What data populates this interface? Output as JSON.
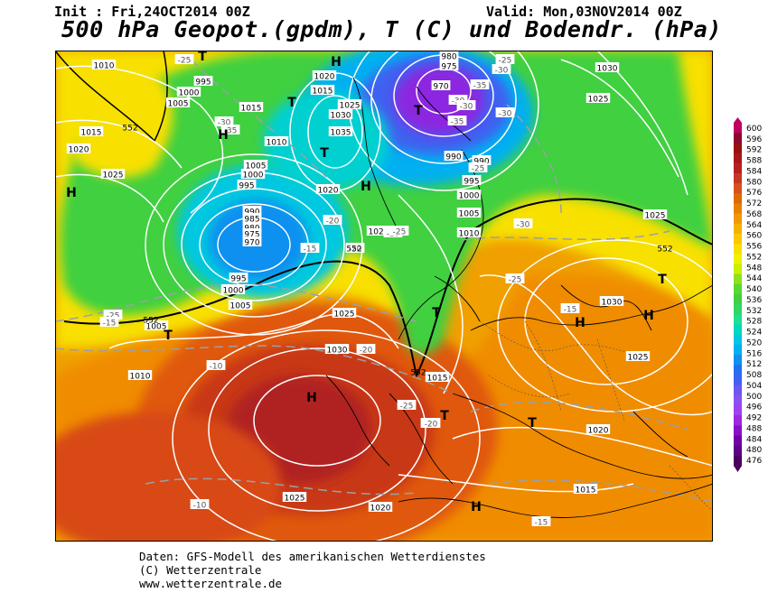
{
  "header": {
    "init_text": "Init : Fri,24OCT2014 00Z",
    "valid_text": "Valid: Mon,03NOV2014 00Z",
    "title": "500 hPa Geopot.(gpdm), T (C) und Bodendr. (hPa)"
  },
  "footer": {
    "line1": "Daten: GFS-Modell des amerikanischen Wetterdienstes",
    "line2": "(C) Wetterzentrale",
    "line3": "www.wetterzentrale.de"
  },
  "colors": {
    "colorbar": [
      "#4b0060",
      "#5e0088",
      "#7200a8",
      "#8a10c8",
      "#9c28e0",
      "#a040f0",
      "#8c50f0",
      "#6a58f0",
      "#4060f0",
      "#2070f0",
      "#1090f0",
      "#00b0f0",
      "#00c8e0",
      "#00d8c0",
      "#20e090",
      "#30d860",
      "#40d040",
      "#58d830",
      "#90e020",
      "#c8f000",
      "#f0f000",
      "#f8e000",
      "#f8c800",
      "#f8b000",
      "#f09800",
      "#e88000",
      "#e06a00",
      "#d85020",
      "#c83820",
      "#b82020",
      "#a81818",
      "#981010",
      "#8c0830",
      "#c00060"
    ]
  },
  "colorbar": {
    "labels": [
      "600",
      "596",
      "592",
      "588",
      "584",
      "580",
      "576",
      "572",
      "568",
      "564",
      "560",
      "556",
      "552",
      "548",
      "544",
      "540",
      "536",
      "532",
      "528",
      "524",
      "520",
      "516",
      "512",
      "508",
      "504",
      "500",
      "496",
      "492",
      "488",
      "484",
      "480",
      "476"
    ]
  },
  "map": {
    "pressure_labels": [
      {
        "text": "1010"
      },
      {
        "text": "995"
      },
      {
        "text": "1000"
      },
      {
        "text": "1005"
      },
      {
        "text": "1015"
      },
      {
        "text": "1020"
      },
      {
        "text": "1015"
      },
      {
        "text": "1025"
      },
      {
        "text": "1010"
      },
      {
        "text": "1005"
      },
      {
        "text": "1000"
      },
      {
        "text": "995"
      },
      {
        "text": "990"
      },
      {
        "text": "985"
      },
      {
        "text": "980"
      },
      {
        "text": "975"
      },
      {
        "text": "970"
      },
      {
        "text": "995"
      },
      {
        "text": "1000"
      },
      {
        "text": "1005"
      },
      {
        "text": "1020"
      },
      {
        "text": "1015"
      },
      {
        "text": "1025"
      },
      {
        "text": "1030"
      },
      {
        "text": "1035"
      },
      {
        "text": "1020"
      },
      {
        "text": "1020"
      },
      {
        "text": "980"
      },
      {
        "text": "975"
      },
      {
        "text": "970"
      },
      {
        "text": "990"
      },
      {
        "text": "990"
      },
      {
        "text": "995"
      },
      {
        "text": "1000"
      },
      {
        "text": "1005"
      },
      {
        "text": "1010"
      },
      {
        "text": "1030"
      },
      {
        "text": "1025"
      },
      {
        "text": "1025"
      },
      {
        "text": "1030"
      },
      {
        "text": "1025"
      },
      {
        "text": "1005"
      },
      {
        "text": "1010"
      },
      {
        "text": "1025"
      },
      {
        "text": "1030"
      },
      {
        "text": "1015"
      },
      {
        "text": "1020"
      },
      {
        "text": "1025"
      },
      {
        "text": "1015"
      },
      {
        "text": "1020"
      }
    ],
    "temp_labels": [
      {
        "text": "-25"
      },
      {
        "text": "-30"
      },
      {
        "text": "-35"
      },
      {
        "text": "-25"
      },
      {
        "text": "-30"
      },
      {
        "text": "-35"
      },
      {
        "text": "-30"
      },
      {
        "text": "-30"
      },
      {
        "text": "-25"
      },
      {
        "text": "-30"
      },
      {
        "text": "-20"
      },
      {
        "text": "-20"
      },
      {
        "text": "-15"
      },
      {
        "text": "-25"
      },
      {
        "text": "-25"
      },
      {
        "text": "-20"
      },
      {
        "text": "-25"
      },
      {
        "text": "-30"
      },
      {
        "text": "-25"
      },
      {
        "text": "-15"
      },
      {
        "text": "-10"
      },
      {
        "text": "-25"
      },
      {
        "text": "-20"
      },
      {
        "text": "-15"
      },
      {
        "text": "-15"
      },
      {
        "text": "-10"
      },
      {
        "text": "-35"
      },
      {
        "text": "-30"
      }
    ],
    "geopot_labels": [
      {
        "text": "552"
      },
      {
        "text": "552"
      },
      {
        "text": "552"
      },
      {
        "text": "552"
      },
      {
        "text": "552"
      }
    ],
    "symbols": [
      {
        "text": "T"
      },
      {
        "text": "H"
      },
      {
        "text": "H"
      },
      {
        "text": "T"
      },
      {
        "text": "T"
      },
      {
        "text": "H"
      },
      {
        "text": "H"
      },
      {
        "text": "T"
      },
      {
        "text": "T"
      },
      {
        "text": "H"
      },
      {
        "text": "T"
      },
      {
        "text": "T"
      },
      {
        "text": "H"
      },
      {
        "text": "H"
      },
      {
        "text": "T"
      },
      {
        "text": "H"
      },
      {
        "text": "T"
      }
    ]
  }
}
